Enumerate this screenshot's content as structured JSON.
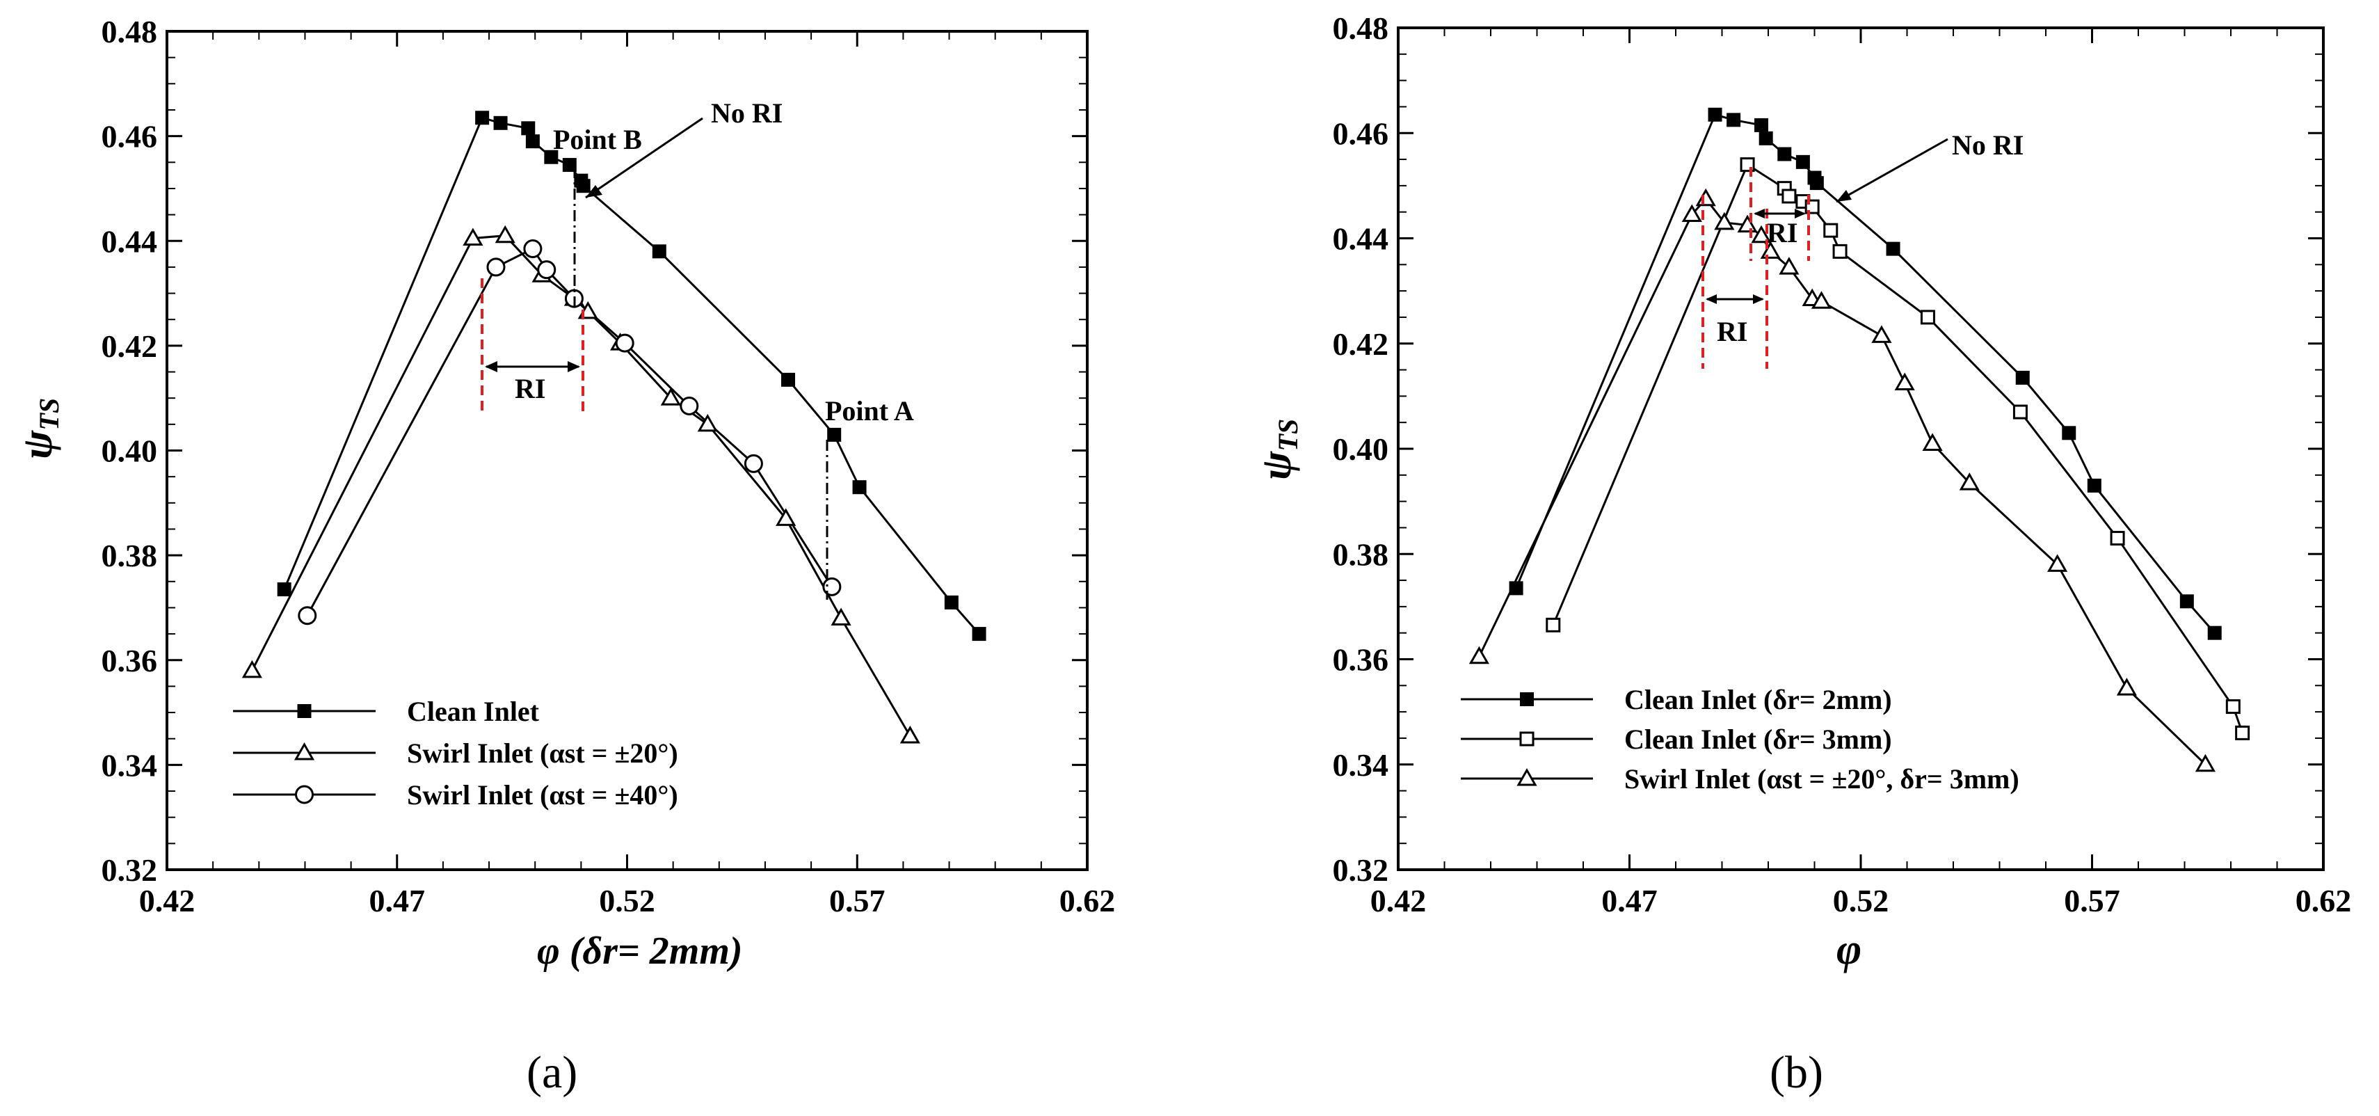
{
  "chart_data": [
    {
      "type": "line",
      "panel_label": "(a)",
      "xlabel": "φ (δr= 2mm)",
      "ylabel": "ψTS",
      "xlim": [
        0.42,
        0.62
      ],
      "ylim": [
        0.32,
        0.48
      ],
      "xticks": [
        "0.42",
        "0.47",
        "0.52",
        "0.57",
        "0.62"
      ],
      "yticks": [
        "0.32",
        "0.34",
        "0.36",
        "0.38",
        "0.40",
        "0.42",
        "0.44",
        "0.46",
        "0.48"
      ],
      "grid": false,
      "legend_position": "bottom-left",
      "series": [
        {
          "name": "Clean Inlet",
          "marker": "filled-square",
          "x": [
            0.4455,
            0.4885,
            0.4925,
            0.4985,
            0.4995,
            0.5035,
            0.5075,
            0.51,
            0.5105,
            0.527,
            0.555,
            0.565,
            0.5705,
            0.5905,
            0.5965
          ],
          "y": [
            0.3735,
            0.4635,
            0.4625,
            0.4615,
            0.459,
            0.456,
            0.4545,
            0.4515,
            0.4505,
            0.438,
            0.4135,
            0.403,
            0.393,
            0.371,
            0.365
          ]
        },
        {
          "name": "Swirl Inlet (αst = ±20°)",
          "marker": "open-triangle",
          "x": [
            0.4385,
            0.4865,
            0.4935,
            0.5015,
            0.5085,
            0.5115,
            0.5185,
            0.5295,
            0.5375,
            0.5545,
            0.5665,
            0.5815
          ],
          "y": [
            0.358,
            0.4405,
            0.441,
            0.4335,
            0.429,
            0.4265,
            0.4205,
            0.41,
            0.405,
            0.387,
            0.368,
            0.3455
          ]
        },
        {
          "name": "Swirl Inlet (αst = ±40°)",
          "marker": "open-circle",
          "x": [
            0.4505,
            0.4915,
            0.4995,
            0.5025,
            0.5085,
            0.5195,
            0.5335,
            0.5475,
            0.5645
          ],
          "y": [
            0.3685,
            0.435,
            0.4385,
            0.4345,
            0.429,
            0.4205,
            0.4085,
            0.3975,
            0.374
          ]
        }
      ],
      "annotations": [
        {
          "text": "Point B",
          "x": 0.5085,
          "y": 0.4545
        },
        {
          "text": "Point A",
          "x": 0.565,
          "y": 0.403
        },
        {
          "text": "No RI"
        },
        {
          "text": "RI"
        }
      ]
    },
    {
      "type": "line",
      "panel_label": "(b)",
      "xlabel": "φ",
      "ylabel": "ψTS",
      "xlim": [
        0.42,
        0.62
      ],
      "ylim": [
        0.32,
        0.48
      ],
      "xticks": [
        "0.42",
        "0.47",
        "0.52",
        "0.57",
        "0.62"
      ],
      "yticks": [
        "0.32",
        "0.34",
        "0.36",
        "0.38",
        "0.40",
        "0.42",
        "0.44",
        "0.46",
        "0.48"
      ],
      "grid": false,
      "legend_position": "bottom-left",
      "series": [
        {
          "name": "Clean Inlet (δr= 2mm)",
          "marker": "filled-square",
          "x": [
            0.4455,
            0.4885,
            0.4925,
            0.4985,
            0.4995,
            0.5035,
            0.5075,
            0.51,
            0.5105,
            0.527,
            0.555,
            0.565,
            0.5705,
            0.5905,
            0.5965
          ],
          "y": [
            0.3735,
            0.4635,
            0.4625,
            0.4615,
            0.459,
            0.456,
            0.4545,
            0.4515,
            0.4505,
            0.438,
            0.4135,
            0.403,
            0.393,
            0.371,
            0.365
          ]
        },
        {
          "name": "Clean Inlet (δr= 3mm)",
          "marker": "open-square",
          "x": [
            0.4535,
            0.4955,
            0.5035,
            0.5045,
            0.5075,
            0.5095,
            0.5135,
            0.5155,
            0.5345,
            0.5545,
            0.5755,
            0.6005,
            0.6025
          ],
          "y": [
            0.3665,
            0.454,
            0.4495,
            0.448,
            0.447,
            0.446,
            0.4415,
            0.4375,
            0.425,
            0.407,
            0.383,
            0.351,
            0.346
          ]
        },
        {
          "name": "Swirl Inlet (αst = ±20°, δr= 3mm)",
          "marker": "open-triangle",
          "x": [
            0.4375,
            0.4835,
            0.4865,
            0.4905,
            0.4955,
            0.4985,
            0.5005,
            0.5045,
            0.5095,
            0.5115,
            0.5245,
            0.5295,
            0.5355,
            0.5435,
            0.5625,
            0.5775,
            0.5945
          ],
          "y": [
            0.3605,
            0.4445,
            0.4475,
            0.443,
            0.4425,
            0.4405,
            0.4375,
            0.4345,
            0.4285,
            0.428,
            0.4215,
            0.4125,
            0.401,
            0.3935,
            0.378,
            0.3545,
            0.34
          ]
        }
      ],
      "annotations": [
        {
          "text": "No RI"
        },
        {
          "text": "RI"
        },
        {
          "text": "RI"
        }
      ]
    }
  ],
  "colors": {
    "axis": "#000000",
    "series": "#000000",
    "ri_marker": "#e02020",
    "background": "#ffffff"
  }
}
